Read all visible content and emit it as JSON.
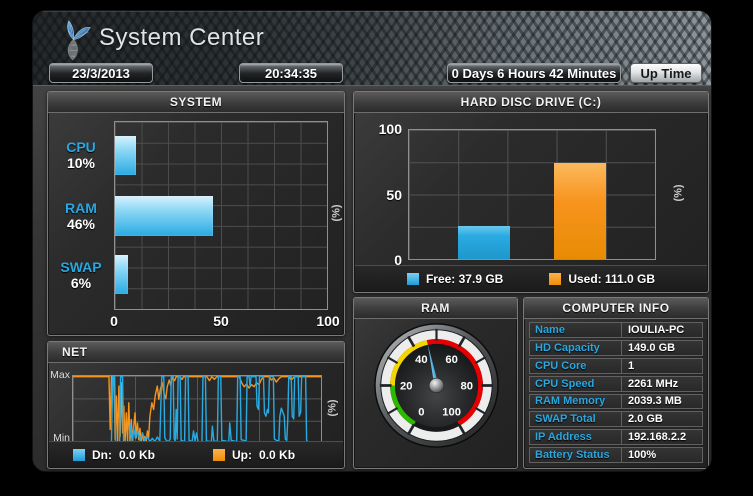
{
  "header": {
    "title": "System Center",
    "date": "23/3/2013",
    "time": "20:34:35",
    "uptime": "0 Days 6 Hours 42 Minutes",
    "uptime_label": "Up Time"
  },
  "colors": {
    "accent_blue": "#29abe2",
    "accent_orange": "#f7941e",
    "label_blue": "#2aa7e0",
    "gauge_green": "#2eb800",
    "gauge_yellow": "#f5d500",
    "gauge_red": "#e60000",
    "gauge_needle": "#2f9fd8"
  },
  "panels": {
    "computer_info": {
      "title": "COMPUTER INFO",
      "rows": [
        {
          "label": "Name",
          "value": "IOULIA-PC"
        },
        {
          "label": "HD Capacity",
          "value": "149.0 GB"
        },
        {
          "label": "CPU Core",
          "value": "1"
        },
        {
          "label": "CPU Speed",
          "value": "2261 MHz"
        },
        {
          "label": "RAM Memory",
          "value": "2039.3 MB"
        },
        {
          "label": "SWAP Total",
          "value": "2.0 GB"
        },
        {
          "label": "IP Address",
          "value": "192.168.2.2"
        },
        {
          "label": "Battery Status",
          "value": "100%"
        }
      ]
    }
  },
  "chart_data": [
    {
      "id": "system",
      "type": "bar",
      "orientation": "horizontal",
      "title": "SYSTEM",
      "ylabel": "(%)",
      "categories": [
        "CPU",
        "RAM",
        "SWAP"
      ],
      "values": [
        10,
        46,
        6
      ],
      "value_labels": [
        "10%",
        "46%",
        "6%"
      ],
      "xlim": [
        0,
        100
      ],
      "xticks": [
        "0",
        "50",
        "100"
      ],
      "grid": true,
      "bar_color": "#29abe2"
    },
    {
      "id": "hdd",
      "type": "bar",
      "orientation": "vertical",
      "title": "HARD DISC DRIVE (C:)",
      "ylabel": "(%)",
      "categories": [
        "Free",
        "Used"
      ],
      "values": [
        25.4,
        74.5
      ],
      "colors": [
        "#29abe2",
        "#f7941e"
      ],
      "ylim": [
        0,
        100
      ],
      "yticks": [
        "100",
        "50",
        "0"
      ],
      "grid": true,
      "legend_position": "bottom",
      "legend": [
        {
          "label": "Free: 37.9 GB",
          "color": "#29abe2"
        },
        {
          "label": "Used: 111.0 GB",
          "color": "#f7941e"
        }
      ]
    },
    {
      "id": "net",
      "type": "line",
      "title": "NET",
      "ylabel": "(%)",
      "y_axis_labels": {
        "max": "Max",
        "min": "Min"
      },
      "ylim": [
        0,
        100
      ],
      "grid": true,
      "legend_position": "bottom",
      "legend": [
        {
          "name": "Dn:",
          "value": "0.0 Kb",
          "color": "#29abe2"
        },
        {
          "name": "Up:",
          "value": "0.0 Kb",
          "color": "#f7941e"
        }
      ],
      "series": [
        {
          "name": "Up",
          "color": "#f7941e",
          "points": [
            [
              0,
              99
            ],
            [
              13,
              99
            ],
            [
              14.5,
              99
            ],
            [
              15,
              20
            ],
            [
              15.5,
              99
            ],
            [
              16.5,
              99
            ],
            [
              17,
              5
            ],
            [
              17.5,
              70
            ],
            [
              18,
              2
            ],
            [
              18.5,
              85
            ],
            [
              19,
              10
            ],
            [
              19.5,
              90
            ],
            [
              20,
              15
            ],
            [
              20.5,
              55
            ],
            [
              21,
              2
            ],
            [
              21.5,
              45
            ],
            [
              22,
              3
            ],
            [
              22.5,
              60
            ],
            [
              23,
              2
            ],
            [
              23.5,
              35
            ],
            [
              24,
              2
            ],
            [
              24.5,
              25
            ],
            [
              25,
              45
            ],
            [
              25.5,
              8
            ],
            [
              26,
              30
            ],
            [
              26.5,
              5
            ],
            [
              27,
              22
            ],
            [
              27.5,
              2
            ],
            [
              28,
              15
            ],
            [
              28.5,
              3
            ],
            [
              29,
              10
            ],
            [
              29.5,
              2
            ],
            [
              30,
              18
            ],
            [
              30.5,
              8
            ],
            [
              31,
              40
            ],
            [
              31.8,
              60
            ],
            [
              32.5,
              50
            ],
            [
              33.2,
              72
            ],
            [
              34,
              85
            ],
            [
              34.6,
              65
            ],
            [
              35.2,
              80
            ],
            [
              36,
              90
            ],
            [
              36.8,
              72
            ],
            [
              37.4,
              66
            ],
            [
              38,
              84
            ],
            [
              38.8,
              94
            ],
            [
              39.4,
              86
            ],
            [
              40,
              99
            ],
            [
              41,
              93
            ],
            [
              41.6,
              99
            ],
            [
              43,
              99
            ],
            [
              44,
              95
            ],
            [
              44.6,
              99
            ],
            [
              54,
              99
            ],
            [
              55,
              93
            ],
            [
              56,
              99
            ],
            [
              57,
              95
            ],
            [
              58,
              99
            ],
            [
              67,
              99
            ],
            [
              68,
              90
            ],
            [
              69,
              84
            ],
            [
              70,
              88
            ],
            [
              71,
              82
            ],
            [
              72,
              87
            ],
            [
              73,
              84
            ],
            [
              74,
              90
            ],
            [
              75,
              87
            ],
            [
              76,
              95
            ],
            [
              77,
              99
            ],
            [
              79,
              99
            ],
            [
              80,
              94
            ],
            [
              81,
              97
            ],
            [
              82,
              91
            ],
            [
              83,
              96
            ],
            [
              84,
              99
            ],
            [
              87,
              99
            ],
            [
              88,
              94
            ],
            [
              89,
              98
            ],
            [
              90,
              99
            ],
            [
              100,
              99
            ]
          ]
        },
        {
          "name": "Dn",
          "color": "#29abe2",
          "points": [
            [
              0,
              1
            ],
            [
              15.5,
              1
            ],
            [
              16,
              99
            ],
            [
              16.8,
              99
            ],
            [
              17.2,
              1
            ],
            [
              18.8,
              1
            ],
            [
              19.2,
              99
            ],
            [
              20,
              99
            ],
            [
              20.4,
              1
            ],
            [
              22.8,
              1
            ],
            [
              23.2,
              28
            ],
            [
              23.8,
              4
            ],
            [
              24.5,
              22
            ],
            [
              25.2,
              7
            ],
            [
              26,
              18
            ],
            [
              27,
              4
            ],
            [
              28,
              15
            ],
            [
              29,
              3
            ],
            [
              30,
              10
            ],
            [
              31,
              2
            ],
            [
              32,
              7
            ],
            [
              33,
              2
            ],
            [
              34,
              9
            ],
            [
              35,
              3
            ],
            [
              35.4,
              55
            ],
            [
              35.8,
              99
            ],
            [
              36.6,
              99
            ],
            [
              37,
              8
            ],
            [
              37.6,
              4
            ],
            [
              38.5,
              2
            ],
            [
              39.2,
              6
            ],
            [
              39.6,
              99
            ],
            [
              40.4,
              99
            ],
            [
              40.8,
              6
            ],
            [
              41.2,
              3
            ],
            [
              41.6,
              50
            ],
            [
              42,
              6
            ],
            [
              42.4,
              99
            ],
            [
              43.2,
              99
            ],
            [
              43.6,
              4
            ],
            [
              45,
              2
            ],
            [
              45.4,
              99
            ],
            [
              46.4,
              99
            ],
            [
              46.8,
              4
            ],
            [
              48,
              2
            ],
            [
              48.6,
              18
            ],
            [
              49.2,
              3
            ],
            [
              49.8,
              15
            ],
            [
              50.4,
              2
            ],
            [
              52,
              2
            ],
            [
              52.4,
              99
            ],
            [
              53.4,
              99
            ],
            [
              53.8,
              3
            ],
            [
              55.8,
              2
            ],
            [
              56.2,
              25
            ],
            [
              56.8,
              3
            ],
            [
              58.2,
              2
            ],
            [
              58.6,
              99
            ],
            [
              59.6,
              99
            ],
            [
              60,
              4
            ],
            [
              62.8,
              2
            ],
            [
              63.2,
              30
            ],
            [
              63.8,
              4
            ],
            [
              66,
              2
            ],
            [
              66.4,
              99
            ],
            [
              67.4,
              99
            ],
            [
              67.8,
              5
            ],
            [
              69.8,
              3
            ],
            [
              70.2,
              99
            ],
            [
              71,
              99
            ],
            [
              71.4,
              85
            ],
            [
              71.8,
              99
            ],
            [
              73.8,
              99
            ],
            [
              74.2,
              55
            ],
            [
              74.8,
              50
            ],
            [
              75.2,
              99
            ],
            [
              76.8,
              99
            ],
            [
              77.2,
              45
            ],
            [
              77.8,
              40
            ],
            [
              78.4,
              50
            ],
            [
              78.8,
              45
            ],
            [
              79.2,
              99
            ],
            [
              80.8,
              99
            ],
            [
              81.2,
              6
            ],
            [
              82,
              4
            ],
            [
              83,
              3
            ],
            [
              83.4,
              40
            ],
            [
              84,
              52
            ],
            [
              84.6,
              46
            ],
            [
              85.2,
              40
            ],
            [
              85.6,
              6
            ],
            [
              86.2,
              4
            ],
            [
              86.6,
              35
            ],
            [
              87,
              99
            ],
            [
              88,
              99
            ],
            [
              88.4,
              40
            ],
            [
              89,
              36
            ],
            [
              89.4,
              99
            ],
            [
              90.8,
              99
            ],
            [
              91.2,
              40
            ],
            [
              91.8,
              46
            ],
            [
              92.2,
              99
            ],
            [
              93.8,
              99
            ],
            [
              94.2,
              4
            ],
            [
              94.8,
              1
            ],
            [
              100,
              1
            ]
          ]
        }
      ]
    },
    {
      "id": "ram_gauge",
      "type": "gauge",
      "title": "RAM",
      "value": 46,
      "min": 0,
      "max": 100,
      "ticks": [
        0,
        20,
        40,
        60,
        80,
        100
      ],
      "zones": [
        {
          "from": 0,
          "to": 20,
          "color": "#2eb800"
        },
        {
          "from": 20,
          "to": 46,
          "color": "#f5d500"
        },
        {
          "from": 46,
          "to": 100,
          "color": "#e60000"
        }
      ],
      "needle_color": "#2f9fd8"
    }
  ]
}
